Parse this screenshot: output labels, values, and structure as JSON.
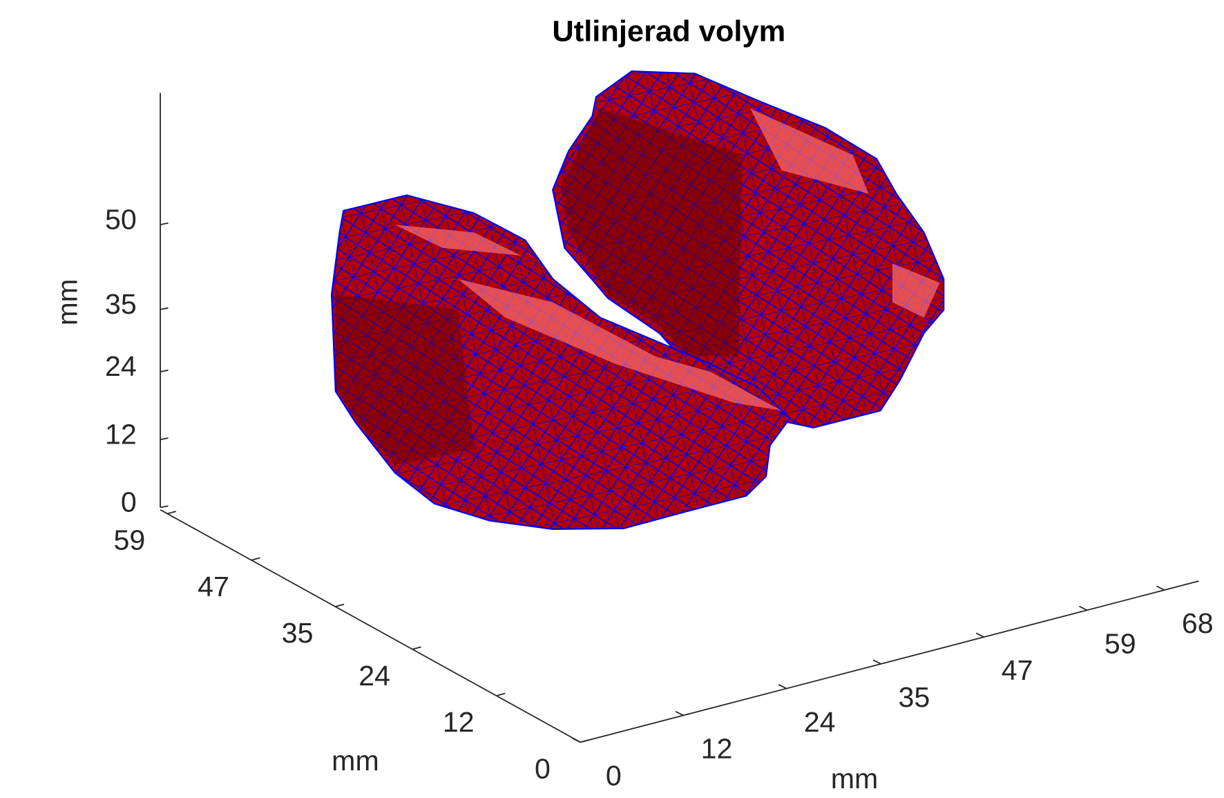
{
  "chart_data": {
    "type": "mesh3d",
    "title": "Utlinjerad volym",
    "xlabel": "mm",
    "ylabel": "mm",
    "zlabel": "mm",
    "xlim": [
      0,
      72
    ],
    "xticks": [
      0,
      12,
      24,
      35,
      47,
      59,
      68
    ],
    "ylim": [
      0,
      60
    ],
    "yticks": [
      0,
      12,
      24,
      35,
      47,
      59
    ],
    "zlim": [
      0,
      73
    ],
    "zticks": [
      0,
      12,
      24,
      35,
      50
    ],
    "face_color": "#b00000",
    "edge_color": "#0000ff"
  }
}
